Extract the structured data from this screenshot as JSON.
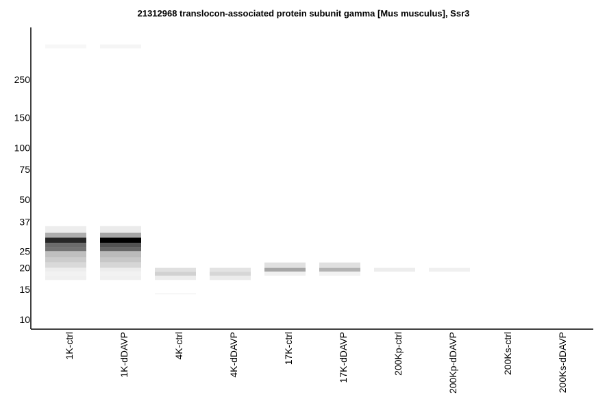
{
  "chart_data": {
    "type": "heatmap",
    "title": "21312968 translocon-associated protein subunit gamma [Mus musculus], Ssr3",
    "xlabel": "",
    "ylabel": "",
    "y_scale": "log",
    "y_ticks": [
      {
        "value": 250,
        "label": "250"
      },
      {
        "value": 150,
        "label": "150"
      },
      {
        "value": 100,
        "label": "100"
      },
      {
        "value": 75,
        "label": "75"
      },
      {
        "value": 50,
        "label": "50"
      },
      {
        "value": 37,
        "label": "37"
      },
      {
        "value": 25,
        "label": "25"
      },
      {
        "value": 20,
        "label": "20"
      },
      {
        "value": 15,
        "label": "15"
      },
      {
        "value": 10,
        "label": "10"
      }
    ],
    "lanes": [
      "1K-ctrl",
      "1K-dDAVP",
      "4K-ctrl",
      "4K-dDAVP",
      "17K-ctrl",
      "17K-dDAVP",
      "200Kp-ctrl",
      "200Kp-dDAVP",
      "200Ks-ctrl",
      "200Ks-dDAVP"
    ],
    "bands": [
      {
        "lane": 0,
        "mw_top": 400,
        "mw_bottom": 380,
        "intensity": 0.03
      },
      {
        "lane": 0,
        "mw_top": 35,
        "mw_bottom": 32,
        "intensity": 0.07
      },
      {
        "lane": 0,
        "mw_top": 32,
        "mw_bottom": 30,
        "intensity": 0.32
      },
      {
        "lane": 0,
        "mw_top": 30,
        "mw_bottom": 28,
        "intensity": 0.85
      },
      {
        "lane": 0,
        "mw_top": 28,
        "mw_bottom": 26.5,
        "intensity": 0.58
      },
      {
        "lane": 0,
        "mw_top": 26.5,
        "mw_bottom": 25,
        "intensity": 0.55
      },
      {
        "lane": 0,
        "mw_top": 25,
        "mw_bottom": 23,
        "intensity": 0.25
      },
      {
        "lane": 0,
        "mw_top": 23,
        "mw_bottom": 21.5,
        "intensity": 0.2
      },
      {
        "lane": 0,
        "mw_top": 21.5,
        "mw_bottom": 20,
        "intensity": 0.15
      },
      {
        "lane": 0,
        "mw_top": 20,
        "mw_bottom": 19,
        "intensity": 0.07
      },
      {
        "lane": 0,
        "mw_top": 19,
        "mw_bottom": 18,
        "intensity": 0.05
      },
      {
        "lane": 0,
        "mw_top": 18,
        "mw_bottom": 17,
        "intensity": 0.06
      },
      {
        "lane": 1,
        "mw_top": 400,
        "mw_bottom": 380,
        "intensity": 0.04
      },
      {
        "lane": 1,
        "mw_top": 35,
        "mw_bottom": 32,
        "intensity": 0.08
      },
      {
        "lane": 1,
        "mw_top": 32,
        "mw_bottom": 30,
        "intensity": 0.35
      },
      {
        "lane": 1,
        "mw_top": 30,
        "mw_bottom": 28,
        "intensity": 1.0
      },
      {
        "lane": 1,
        "mw_top": 28,
        "mw_bottom": 26.5,
        "intensity": 0.68
      },
      {
        "lane": 1,
        "mw_top": 26.5,
        "mw_bottom": 25,
        "intensity": 0.6
      },
      {
        "lane": 1,
        "mw_top": 25,
        "mw_bottom": 23,
        "intensity": 0.27
      },
      {
        "lane": 1,
        "mw_top": 23,
        "mw_bottom": 21.5,
        "intensity": 0.22
      },
      {
        "lane": 1,
        "mw_top": 21.5,
        "mw_bottom": 20,
        "intensity": 0.16
      },
      {
        "lane": 1,
        "mw_top": 20,
        "mw_bottom": 19,
        "intensity": 0.07
      },
      {
        "lane": 1,
        "mw_top": 19,
        "mw_bottom": 18,
        "intensity": 0.05
      },
      {
        "lane": 1,
        "mw_top": 18,
        "mw_bottom": 17,
        "intensity": 0.06
      },
      {
        "lane": 2,
        "mw_top": 20,
        "mw_bottom": 19,
        "intensity": 0.12
      },
      {
        "lane": 2,
        "mw_top": 19,
        "mw_bottom": 18,
        "intensity": 0.18
      },
      {
        "lane": 2,
        "mw_top": 18,
        "mw_bottom": 17,
        "intensity": 0.07
      },
      {
        "lane": 2,
        "mw_top": 14.3,
        "mw_bottom": 14.0,
        "intensity": 0.03
      },
      {
        "lane": 3,
        "mw_top": 20,
        "mw_bottom": 19,
        "intensity": 0.11
      },
      {
        "lane": 3,
        "mw_top": 19,
        "mw_bottom": 18,
        "intensity": 0.16
      },
      {
        "lane": 3,
        "mw_top": 18,
        "mw_bottom": 17,
        "intensity": 0.08
      },
      {
        "lane": 4,
        "mw_top": 21.5,
        "mw_bottom": 20,
        "intensity": 0.12
      },
      {
        "lane": 4,
        "mw_top": 20,
        "mw_bottom": 19,
        "intensity": 0.35
      },
      {
        "lane": 4,
        "mw_top": 19,
        "mw_bottom": 18,
        "intensity": 0.06
      },
      {
        "lane": 5,
        "mw_top": 21.5,
        "mw_bottom": 20,
        "intensity": 0.12
      },
      {
        "lane": 5,
        "mw_top": 20,
        "mw_bottom": 19,
        "intensity": 0.3
      },
      {
        "lane": 5,
        "mw_top": 19,
        "mw_bottom": 18,
        "intensity": 0.05
      },
      {
        "lane": 6,
        "mw_top": 20,
        "mw_bottom": 19,
        "intensity": 0.07
      },
      {
        "lane": 7,
        "mw_top": 20,
        "mw_bottom": 19,
        "intensity": 0.06
      }
    ]
  }
}
